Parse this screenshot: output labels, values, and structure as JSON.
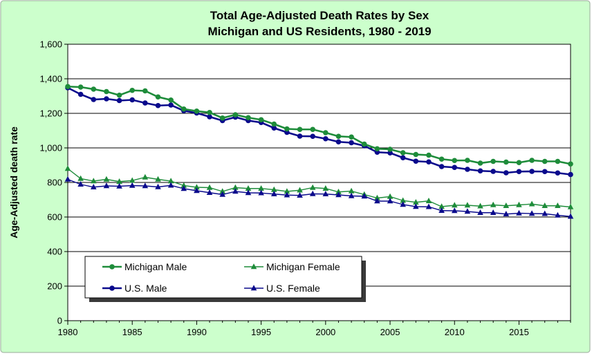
{
  "chart_data": {
    "type": "line",
    "title": "Total Age-Adjusted Death Rates by Sex",
    "subtitle": "Michigan and US Residents, 1980 - 2019",
    "xlabel": "",
    "ylabel": "Age-Adjusted death rate",
    "xlim": [
      1980,
      2019
    ],
    "ylim": [
      0,
      1600
    ],
    "x_ticks": [
      "1980",
      "1985",
      "1990",
      "1995",
      "2000",
      "2005",
      "2010",
      "2015"
    ],
    "y_ticks": [
      "0",
      "200",
      "400",
      "600",
      "800",
      "1,000",
      "1,200",
      "1,400",
      "1,600"
    ],
    "x": [
      1980,
      1981,
      1982,
      1983,
      1984,
      1985,
      1986,
      1987,
      1988,
      1989,
      1990,
      1991,
      1992,
      1993,
      1994,
      1995,
      1996,
      1997,
      1998,
      1999,
      2000,
      2001,
      2002,
      2003,
      2004,
      2005,
      2006,
      2007,
      2008,
      2009,
      2010,
      2011,
      2012,
      2013,
      2014,
      2015,
      2016,
      2017,
      2018,
      2019
    ],
    "legend_position": "bottom-left",
    "grid": "horizontal",
    "colors": {
      "background": "#ccffcc",
      "plot_area": "#ffffff",
      "michigan": "#1e8c3a",
      "us": "#0a0a8c"
    },
    "series": [
      {
        "name": "Michigan Male",
        "marker": "circle",
        "color": "#1e8c3a",
        "values": [
          1355,
          1352,
          1340,
          1326,
          1305,
          1333,
          1330,
          1295,
          1277,
          1225,
          1213,
          1205,
          1173,
          1192,
          1175,
          1163,
          1138,
          1110,
          1107,
          1107,
          1088,
          1067,
          1063,
          1022,
          995,
          992,
          972,
          962,
          958,
          935,
          927,
          928,
          912,
          922,
          918,
          915,
          928,
          922,
          922,
          907
        ]
      },
      {
        "name": "Michigan Female",
        "marker": "triangle",
        "color": "#1e8c3a",
        "values": [
          880,
          822,
          808,
          818,
          805,
          811,
          830,
          818,
          808,
          782,
          772,
          770,
          748,
          770,
          765,
          765,
          758,
          748,
          755,
          770,
          765,
          745,
          750,
          730,
          710,
          718,
          695,
          685,
          693,
          660,
          668,
          668,
          663,
          670,
          665,
          670,
          675,
          665,
          665,
          658
        ]
      },
      {
        "name": "U.S. Male",
        "marker": "circle",
        "color": "#0a0a8c",
        "values": [
          1348,
          1310,
          1280,
          1284,
          1274,
          1278,
          1260,
          1245,
          1248,
          1215,
          1202,
          1180,
          1158,
          1178,
          1158,
          1147,
          1115,
          1090,
          1068,
          1067,
          1053,
          1035,
          1030,
          1012,
          975,
          971,
          943,
          923,
          919,
          892,
          887,
          876,
          867,
          864,
          856,
          863,
          864,
          863,
          855,
          846
        ]
      },
      {
        "name": "U.S. Female",
        "marker": "triangle",
        "color": "#0a0a8c",
        "values": [
          818,
          789,
          773,
          780,
          778,
          782,
          780,
          774,
          783,
          764,
          752,
          741,
          730,
          748,
          740,
          739,
          733,
          727,
          725,
          734,
          733,
          728,
          722,
          720,
          692,
          692,
          672,
          660,
          659,
          637,
          636,
          632,
          625,
          625,
          617,
          622,
          620,
          619,
          610,
          603
        ]
      }
    ]
  }
}
